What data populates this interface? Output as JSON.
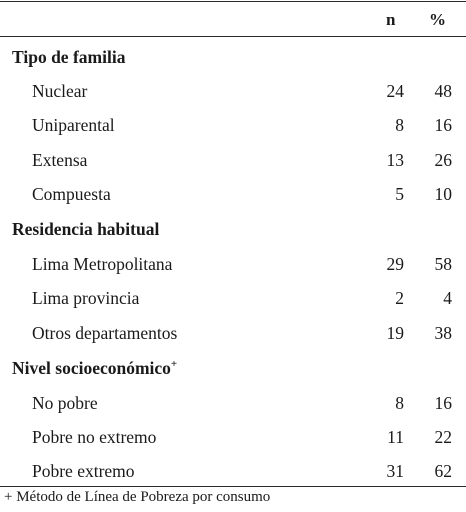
{
  "header": {
    "n_label": "n",
    "pct_label": "%"
  },
  "sections": [
    {
      "title": "Tipo de familia",
      "superscript": "",
      "rows": [
        {
          "label": "Nuclear",
          "n": "24",
          "pct": "48"
        },
        {
          "label": "Uniparental",
          "n": "8",
          "pct": "16"
        },
        {
          "label": "Extensa",
          "n": "13",
          "pct": "26"
        },
        {
          "label": "Compuesta",
          "n": "5",
          "pct": "10"
        }
      ]
    },
    {
      "title": "Residencia habitual",
      "superscript": "",
      "rows": [
        {
          "label": "Lima Metropolitana",
          "n": "29",
          "pct": "58"
        },
        {
          "label": "Lima provincia",
          "n": "2",
          "pct": "4"
        },
        {
          "label": "Otros departamentos",
          "n": "19",
          "pct": "38"
        }
      ]
    },
    {
      "title": "Nivel socioeconómico",
      "superscript": "+",
      "rows": [
        {
          "label": "No pobre",
          "n": "8",
          "pct": "16"
        },
        {
          "label": "Pobre no extremo",
          "n": "11",
          "pct": "22"
        },
        {
          "label": "Pobre extremo",
          "n": "31",
          "pct": "62"
        }
      ]
    }
  ],
  "footnote": "+ Método de Línea de Pobreza por consumo"
}
